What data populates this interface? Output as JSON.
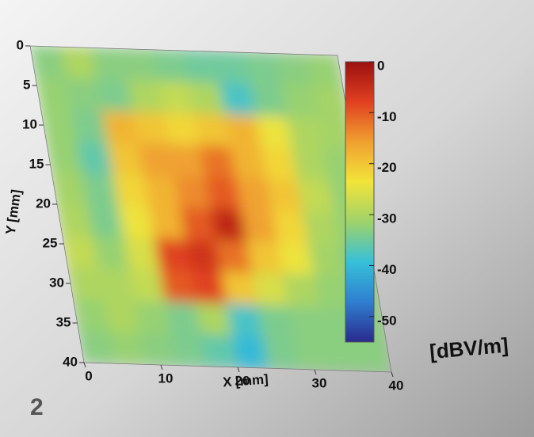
{
  "chart_data": {
    "type": "heatmap",
    "annotation": "2",
    "x_label": "X [mm]",
    "y_label": "Y [mm]",
    "colorbar_label": "[dBV/m]",
    "xlim": [
      0,
      40
    ],
    "ylim": [
      0,
      40
    ],
    "xticks": [
      0,
      10,
      20,
      30,
      40
    ],
    "yticks": [
      0,
      5,
      10,
      15,
      20,
      25,
      30,
      35,
      40
    ],
    "clim": [
      -55,
      0
    ],
    "cticks": [
      0,
      -10,
      -20,
      -30,
      -40,
      -50
    ],
    "colormap": [
      "#2a2a8c",
      "#2f7fd0",
      "#37c0d8",
      "#9fd26a",
      "#f2e43a",
      "#f0a030",
      "#e04020",
      "#9c1010"
    ],
    "z": [
      [
        -33,
        -30,
        -33,
        -33,
        -34,
        -35,
        -35,
        -34,
        -33,
        -32
      ],
      [
        -32,
        -33,
        -34,
        -30,
        -28,
        -30,
        -38,
        -34,
        -32,
        -31
      ],
      [
        -32,
        -34,
        -18,
        -20,
        -22,
        -20,
        -18,
        -24,
        -30,
        -31
      ],
      [
        -32,
        -36,
        -20,
        -16,
        -16,
        -12,
        -18,
        -22,
        -30,
        -32
      ],
      [
        -31,
        -34,
        -22,
        -18,
        -14,
        -10,
        -16,
        -20,
        -28,
        -32
      ],
      [
        -30,
        -34,
        -24,
        -18,
        -10,
        -4,
        -16,
        -22,
        -30,
        -32
      ],
      [
        -28,
        -32,
        -26,
        -8,
        -6,
        -12,
        -20,
        -24,
        -31,
        -33
      ],
      [
        -30,
        -30,
        -28,
        -10,
        -8,
        -20,
        -26,
        -30,
        -32,
        -33
      ],
      [
        -32,
        -30,
        -32,
        -34,
        -30,
        -38,
        -34,
        -33,
        -33,
        -33
      ],
      [
        -33,
        -32,
        -33,
        -34,
        -36,
        -40,
        -34,
        -33,
        -33,
        -33
      ]
    ]
  }
}
